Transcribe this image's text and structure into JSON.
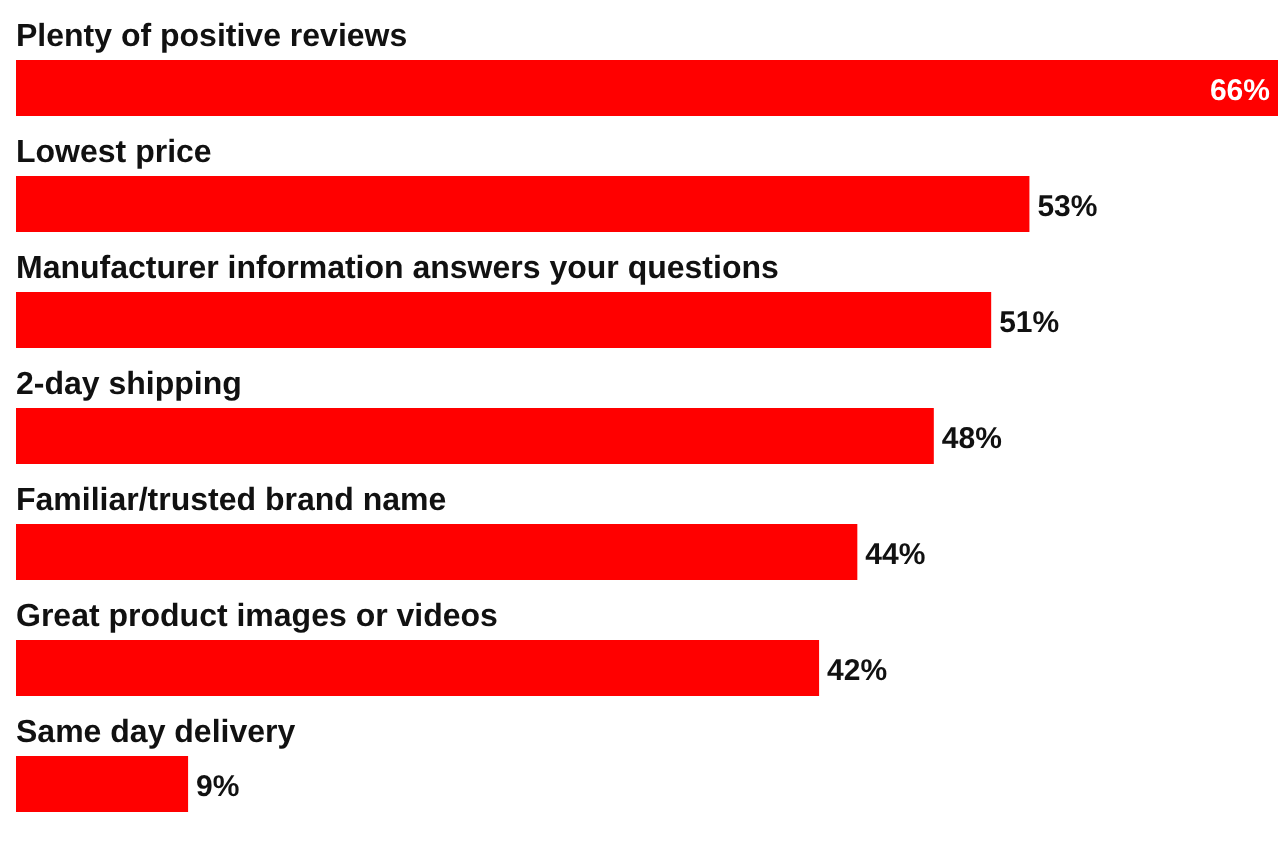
{
  "chart_data": {
    "type": "bar",
    "orientation": "horizontal",
    "categories": [
      "Plenty of positive reviews",
      "Lowest price",
      "Manufacturer information answers your questions",
      "2-day shipping",
      "Familiar/trusted brand name",
      "Great product images or videos",
      "Same day delivery"
    ],
    "values": [
      66,
      53,
      51,
      48,
      44,
      42,
      9
    ],
    "value_labels": [
      "66%",
      "53%",
      "51%",
      "48%",
      "44%",
      "42%",
      "9%"
    ],
    "color": "#ff0000"
  }
}
